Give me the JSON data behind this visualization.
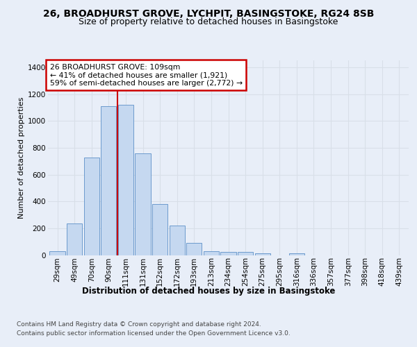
{
  "title": "26, BROADHURST GROVE, LYCHPIT, BASINGSTOKE, RG24 8SB",
  "subtitle": "Size of property relative to detached houses in Basingstoke",
  "xlabel": "Distribution of detached houses by size in Basingstoke",
  "ylabel": "Number of detached properties",
  "categories": [
    "29sqm",
    "49sqm",
    "70sqm",
    "90sqm",
    "111sqm",
    "131sqm",
    "152sqm",
    "172sqm",
    "193sqm",
    "213sqm",
    "234sqm",
    "254sqm",
    "275sqm",
    "295sqm",
    "316sqm",
    "336sqm",
    "357sqm",
    "377sqm",
    "398sqm",
    "418sqm",
    "439sqm"
  ],
  "bar_heights": [
    30,
    235,
    725,
    1110,
    1120,
    760,
    380,
    220,
    90,
    30,
    25,
    22,
    15,
    0,
    12,
    0,
    0,
    0,
    0,
    0,
    0
  ],
  "bar_color": "#c5d8f0",
  "bar_edge_color": "#5b8fc7",
  "vline_color": "#cc0000",
  "vline_index": 3.5,
  "ylim": [
    0,
    1450
  ],
  "yticks": [
    0,
    200,
    400,
    600,
    800,
    1000,
    1200,
    1400
  ],
  "annotation_title": "26 BROADHURST GROVE: 109sqm",
  "annotation_line1": "← 41% of detached houses are smaller (1,921)",
  "annotation_line2": "59% of semi-detached houses are larger (2,772) →",
  "annotation_box_facecolor": "#ffffff",
  "annotation_box_edgecolor": "#cc0000",
  "background_color": "#e8eef8",
  "grid_color": "#d8dfe8",
  "footer_line1": "Contains HM Land Registry data © Crown copyright and database right 2024.",
  "footer_line2": "Contains public sector information licensed under the Open Government Licence v3.0.",
  "title_fontsize": 10,
  "subtitle_fontsize": 9,
  "ylabel_fontsize": 8,
  "xlabel_fontsize": 8.5,
  "tick_fontsize": 7.5,
  "annotation_fontsize": 7.8,
  "footer_fontsize": 6.5
}
